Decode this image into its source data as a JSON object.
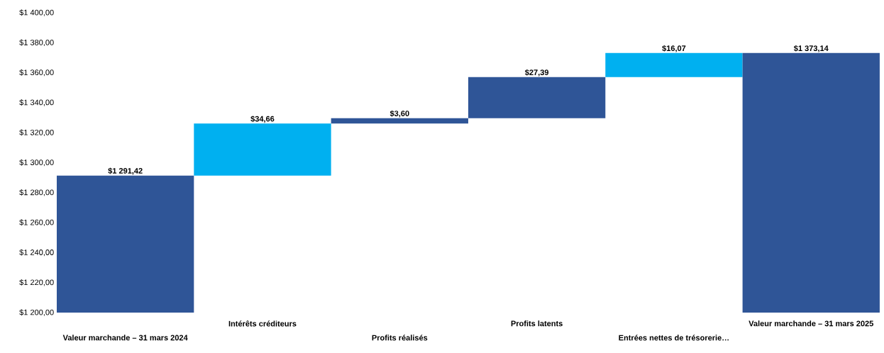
{
  "chart_data": {
    "type": "bar",
    "categories": [
      "Valeur marchande – 31 mars 2024",
      "Intérêts créditeurs",
      "Profits réalisés",
      "Profits latents",
      "Entrées nettes de trésorerie…",
      "Valeur marchande – 31 mars 2025"
    ],
    "values": [
      1291.42,
      34.66,
      3.6,
      27.39,
      16.07,
      1373.14
    ],
    "base": [
      null,
      1291.42,
      1326.08,
      1329.68,
      1357.07,
      null
    ],
    "colors": [
      "#2f5597",
      "#00b0f0",
      "#2f5597",
      "#2f5597",
      "#00b0f0",
      "#2f5597"
    ],
    "value_labels": [
      "$1 291,42",
      "$34,66",
      "$3,60",
      "$27,39",
      "$16,07",
      "$1 373,14"
    ],
    "ylim": [
      1200,
      1400
    ],
    "yticks": [
      {
        "value": 1200,
        "label": "$1 200,00"
      },
      {
        "value": 1220,
        "label": "$1 220,00"
      },
      {
        "value": 1240,
        "label": "$1 240,00"
      },
      {
        "value": 1260,
        "label": "$1 260,00"
      },
      {
        "value": 1280,
        "label": "$1 280,00"
      },
      {
        "value": 1300,
        "label": "$1 300,00"
      },
      {
        "value": 1320,
        "label": "$1 320,00"
      },
      {
        "value": 1340,
        "label": "$1 340,00"
      },
      {
        "value": 1360,
        "label": "$1 360,00"
      },
      {
        "value": 1380,
        "label": "$1 380,00"
      },
      {
        "value": 1400,
        "label": "$1 400,00"
      }
    ],
    "grid": false
  }
}
